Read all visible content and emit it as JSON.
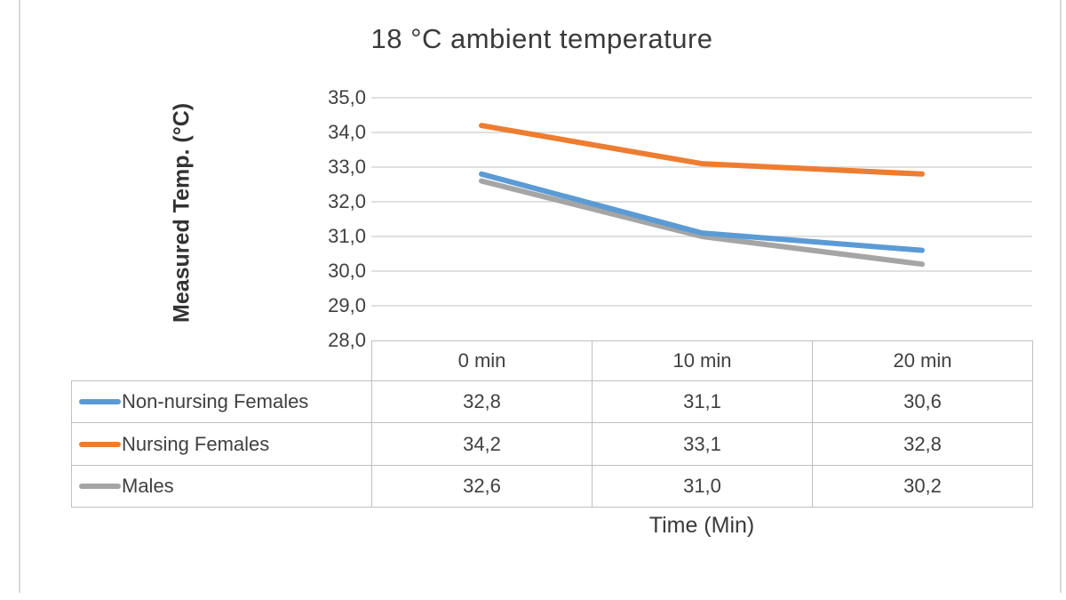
{
  "chart": {
    "title": "18 °C ambient temperature",
    "ylabel": "Measured Temp. (°C)",
    "xlabel": "Time (Min)"
  },
  "chart_data": {
    "type": "line",
    "title": "18 °C ambient temperature",
    "xlabel": "Time (Min)",
    "ylabel": "Measured Temp. (°C)",
    "categories": [
      "0 min",
      "10 min",
      "20 min"
    ],
    "series": [
      {
        "name": "Non-nursing Females",
        "color": "#5B9BD5",
        "values": [
          32.8,
          31.1,
          30.6
        ],
        "labels": [
          "32,8",
          "31,1",
          "30,6"
        ]
      },
      {
        "name": "Nursing Females",
        "color": "#ED7D31",
        "values": [
          34.2,
          33.1,
          32.8
        ],
        "labels": [
          "34,2",
          "33,1",
          "32,8"
        ]
      },
      {
        "name": "Males",
        "color": "#A5A5A5",
        "values": [
          32.6,
          31.0,
          30.2
        ],
        "labels": [
          "32,6",
          "31,0",
          "30,2"
        ]
      }
    ],
    "ylim": [
      28,
      35
    ],
    "ytick_step": 1,
    "ytick_labels": [
      "35,0",
      "34,0",
      "33,0",
      "32,0",
      "31,0",
      "30,0",
      "29,0",
      "28,0"
    ],
    "grid": true,
    "legend_position": "table-left",
    "decimal_separator": ","
  },
  "colors": {
    "grid": "#d6d6d6",
    "table_border": "#bfbfbf",
    "text": "#404040",
    "frame_line": "#d9d9d9"
  }
}
